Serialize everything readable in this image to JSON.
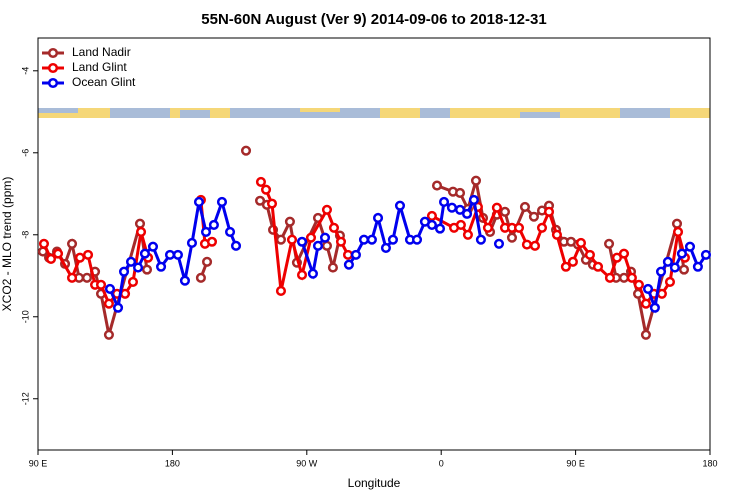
{
  "chart_data": {
    "type": "line",
    "title": "55N-60N August (Ver 9)   2014-09-06 to 2018-12-31",
    "xlabel": "Longitude",
    "ylabel": "XCO2 - MLO trend (ppm)",
    "xlim": [
      90,
      540
    ],
    "xticks": [
      {
        "value": 90,
        "label": "90 E"
      },
      180,
      {
        "value": 270,
        "label": "90 W"
      },
      {
        "value": 360,
        "label": "0"
      },
      {
        "value": 450,
        "label": "90 E"
      },
      {
        "value": 540,
        "label": "180"
      }
    ],
    "ylim": [
      -13.25,
      -3.2
    ],
    "yticks": [
      -12,
      -10,
      -8,
      -6,
      -4
    ],
    "legend": "top-left",
    "series": [
      {
        "name": "Land Nadir",
        "color": "#a52a2a",
        "x": [
          93.3,
          97.4,
          102.7,
          108.1,
          112.8,
          117.5,
          122.8,
          128.2,
          132.2,
          137.5,
          158.3,
          163,
          null,
          199.1,
          203.2,
          null,
          229.3,
          null,
          238.7,
          243.3,
          247.4,
          252.7,
          258.7,
          263.4,
          277.5,
          283.5,
          287.5,
          292.2,
          null,
          357.2,
          367.9,
          372.6,
          377.9,
          383.3,
          388,
          392.7,
          397.3,
          402.7,
          407.4,
          416.1,
          422.1,
          427.5,
          432.2,
          436.9,
          442.2,
          446.9,
          451.6,
          456.9,
          461.6,
          null,
          472.4,
          477.1,
          482.4,
          487.1,
          491.8,
          497.1,
          517.9,
          522.6
        ],
        "values": [
          -8.41,
          -8.56,
          -8.41,
          -8.71,
          -8.22,
          -9.05,
          -9.05,
          -8.9,
          -9.44,
          -10.44,
          -7.73,
          -8.85,
          null,
          -9.05,
          -8.66,
          null,
          -5.95,
          null,
          -7.17,
          -7.27,
          -7.88,
          -8.12,
          -7.68,
          -8.68,
          -7.59,
          -8.27,
          -8.8,
          -8.02,
          null,
          -6.8,
          -6.95,
          -6.98,
          -7.37,
          -6.68,
          -7.59,
          -7.93,
          -7.51,
          -7.44,
          -8.07,
          -7.32,
          -7.56,
          -7.41,
          -7.29,
          -7.88,
          -8.17,
          -8.17,
          -8.24,
          -8.61,
          -8.73,
          null,
          -8.22,
          -9.05,
          -9.05,
          -8.9,
          -9.44,
          -10.44,
          -7.73,
          -8.85
        ]
      },
      {
        "name": "Land Glint",
        "color": "#ee0000",
        "x": [
          94,
          98.7,
          103.4,
          112.8,
          118.1,
          123.5,
          128.2,
          132.2,
          137.5,
          142.9,
          148.3,
          153.6,
          159,
          163.7,
          null,
          199.1,
          201.8,
          206.5,
          null,
          239.3,
          242.7,
          246.7,
          252.7,
          260.1,
          266.8,
          272.8,
          283.5,
          288.2,
          292.9,
          297.6,
          null,
          353.8,
          368.6,
          373.2,
          377.9,
          384.6,
          391.3,
          397.3,
          402.7,
          407.4,
          412.1,
          417.4,
          422.8,
          427.5,
          432.2,
          437.5,
          443.5,
          448.2,
          453.6,
          459.6,
          465,
          473,
          477.7,
          482.4,
          487.7,
          492.4,
          497.1,
          502.5,
          507.8,
          513.2,
          518.6,
          523.2
        ],
        "values": [
          -8.22,
          -8.59,
          -8.46,
          -9.05,
          -8.56,
          -8.49,
          -9.22,
          -9.22,
          -9.68,
          -9.44,
          -9.44,
          -9.15,
          -7.93,
          -8.56,
          null,
          -7.15,
          -8.22,
          -8.17,
          null,
          -6.71,
          -6.9,
          -7.24,
          -9.37,
          -8.12,
          -8.98,
          -8.07,
          -7.39,
          -7.83,
          -8.17,
          -8.49,
          null,
          -7.54,
          -7.83,
          -7.76,
          -8.0,
          -7.32,
          -7.83,
          -7.34,
          -7.83,
          -7.83,
          -7.83,
          -8.24,
          -8.27,
          -7.83,
          -7.44,
          -8.0,
          -8.78,
          -8.66,
          -8.2,
          -8.49,
          -8.78,
          -9.05,
          -8.56,
          -8.46,
          -9.05,
          -9.22,
          -9.68,
          -9.44,
          -9.44,
          -9.15,
          -7.93,
          -8.56
        ]
      },
      {
        "name": "Ocean Glint",
        "color": "#0000ee",
        "x": [
          138.2,
          143.6,
          147.6,
          152.3,
          157,
          161.6,
          167,
          172.4,
          178.4,
          183.7,
          188.4,
          193.1,
          197.8,
          202.5,
          207.8,
          213.2,
          218.6,
          222.6,
          null,
          266.8,
          274.1,
          277.5,
          282.2,
          null,
          298.2,
          302.9,
          308.3,
          313.6,
          317.7,
          323,
          327.7,
          332.4,
          339.1,
          343.8,
          349.1,
          353.8,
          359.2,
          361.9,
          367.2,
          372.6,
          377.3,
          381.9,
          386.6,
          null,
          398.7,
          null,
          498.5,
          503.1,
          507.2,
          511.8,
          516.5,
          521.2,
          526.6,
          531.9,
          537.3
        ],
        "values": [
          -9.32,
          -9.78,
          -8.9,
          -8.66,
          -8.8,
          -8.46,
          -8.29,
          -8.78,
          -8.49,
          -8.49,
          -9.12,
          -8.2,
          -7.2,
          -7.93,
          -7.76,
          -7.2,
          -7.93,
          -8.27,
          null,
          -8.17,
          -8.95,
          -8.27,
          -8.07,
          null,
          -8.73,
          -8.49,
          -8.12,
          -8.12,
          -7.59,
          -8.32,
          -8.12,
          -7.29,
          -8.12,
          -8.12,
          -7.68,
          -7.76,
          -7.85,
          -7.2,
          -7.34,
          -7.39,
          -7.49,
          -7.15,
          -8.12,
          null,
          -8.22,
          null,
          -9.32,
          -9.78,
          -8.9,
          -8.66,
          -8.8,
          -8.46,
          -8.29,
          -8.78,
          -8.49
        ]
      }
    ]
  }
}
